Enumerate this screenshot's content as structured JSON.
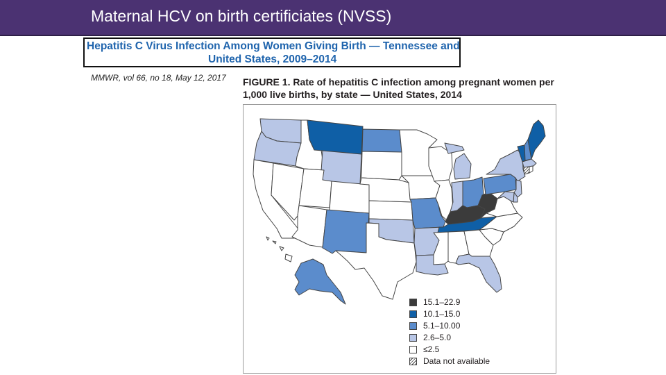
{
  "slide": {
    "title": "Maternal HCV on birth certificiates (NVSS)"
  },
  "article": {
    "title_line1": "Hepatitis C Virus Infection Among Women Giving Birth — Tennessee and",
    "title_line2": "United States, 2009–2014",
    "citation": "MMWR, vol 66, no 18, May 12, 2017"
  },
  "figure": {
    "caption_line1": "FIGURE 1. Rate of hepatitis C infection among pregnant women per",
    "caption_line2": "1,000 live births, by state — United States, 2014"
  },
  "colors": {
    "header_bg": "#4b3272",
    "article_title": "#1f64ad",
    "class_15_1_22_9": "#3b3b3b",
    "class_10_1_15_0": "#0f5fa6",
    "class_5_1_10_00": "#5b8ccc",
    "class_2_6_5_0": "#b8c6e6",
    "class_le_2_5": "#ffffff"
  },
  "legend": [
    {
      "label": "15.1–22.9",
      "color": "#3b3b3b"
    },
    {
      "label": "10.1–15.0",
      "color": "#0f5fa6"
    },
    {
      "label": "5.1–10.00",
      "color": "#5b8ccc"
    },
    {
      "label": "2.6–5.0",
      "color": "#b8c6e6"
    },
    {
      "label": "≤2.5",
      "color": "#ffffff"
    },
    {
      "label": "Data not available",
      "color": "hatched"
    }
  ],
  "states": [
    {
      "code": "WA",
      "class": "2.6–5.0"
    },
    {
      "code": "OR",
      "class": "2.6–5.0"
    },
    {
      "code": "CA",
      "class": "≤2.5"
    },
    {
      "code": "NV",
      "class": "≤2.5"
    },
    {
      "code": "ID",
      "class": "≤2.5"
    },
    {
      "code": "MT",
      "class": "10.1–15.0"
    },
    {
      "code": "WY",
      "class": "2.6–5.0"
    },
    {
      "code": "UT",
      "class": "≤2.5"
    },
    {
      "code": "AZ",
      "class": "≤2.5"
    },
    {
      "code": "CO",
      "class": "≤2.5"
    },
    {
      "code": "NM",
      "class": "5.1–10.00"
    },
    {
      "code": "ND",
      "class": "5.1–10.00"
    },
    {
      "code": "SD",
      "class": "≤2.5"
    },
    {
      "code": "NE",
      "class": "≤2.5"
    },
    {
      "code": "KS",
      "class": "≤2.5"
    },
    {
      "code": "OK",
      "class": "2.6–5.0"
    },
    {
      "code": "TX",
      "class": "≤2.5"
    },
    {
      "code": "MN",
      "class": "≤2.5"
    },
    {
      "code": "IA",
      "class": "≤2.5"
    },
    {
      "code": "MO",
      "class": "5.1–10.00"
    },
    {
      "code": "AR",
      "class": "2.6–5.0"
    },
    {
      "code": "LA",
      "class": "2.6–5.0"
    },
    {
      "code": "WI",
      "class": "≤2.5"
    },
    {
      "code": "IL",
      "class": "≤2.5"
    },
    {
      "code": "MI",
      "class": "2.6–5.0"
    },
    {
      "code": "IN",
      "class": "2.6–5.0"
    },
    {
      "code": "OH",
      "class": "5.1–10.00"
    },
    {
      "code": "KY",
      "class": "15.1–22.9"
    },
    {
      "code": "WV",
      "class": "15.1–22.9"
    },
    {
      "code": "TN",
      "class": "10.1–15.0"
    },
    {
      "code": "MS",
      "class": "≤2.5"
    },
    {
      "code": "AL",
      "class": "≤2.5"
    },
    {
      "code": "GA",
      "class": "≤2.5"
    },
    {
      "code": "FL",
      "class": "2.6–5.0"
    },
    {
      "code": "SC",
      "class": "≤2.5"
    },
    {
      "code": "NC",
      "class": "≤2.5"
    },
    {
      "code": "VA",
      "class": "≤2.5"
    },
    {
      "code": "PA",
      "class": "5.1–10.00"
    },
    {
      "code": "NY",
      "class": "2.6–5.0"
    },
    {
      "code": "VT",
      "class": "10.1–15.0"
    },
    {
      "code": "NH",
      "class": "5.1–10.00"
    },
    {
      "code": "ME",
      "class": "10.1–15.0"
    },
    {
      "code": "MA",
      "class": "2.6–5.0"
    },
    {
      "code": "CT",
      "class": "Data not available"
    },
    {
      "code": "NJ",
      "class": "2.6–5.0"
    },
    {
      "code": "DE",
      "class": "2.6–5.0"
    },
    {
      "code": "MD",
      "class": "2.6–5.0"
    },
    {
      "code": "AK",
      "class": "5.1–10.00"
    },
    {
      "code": "HI",
      "class": "≤2.5"
    }
  ]
}
